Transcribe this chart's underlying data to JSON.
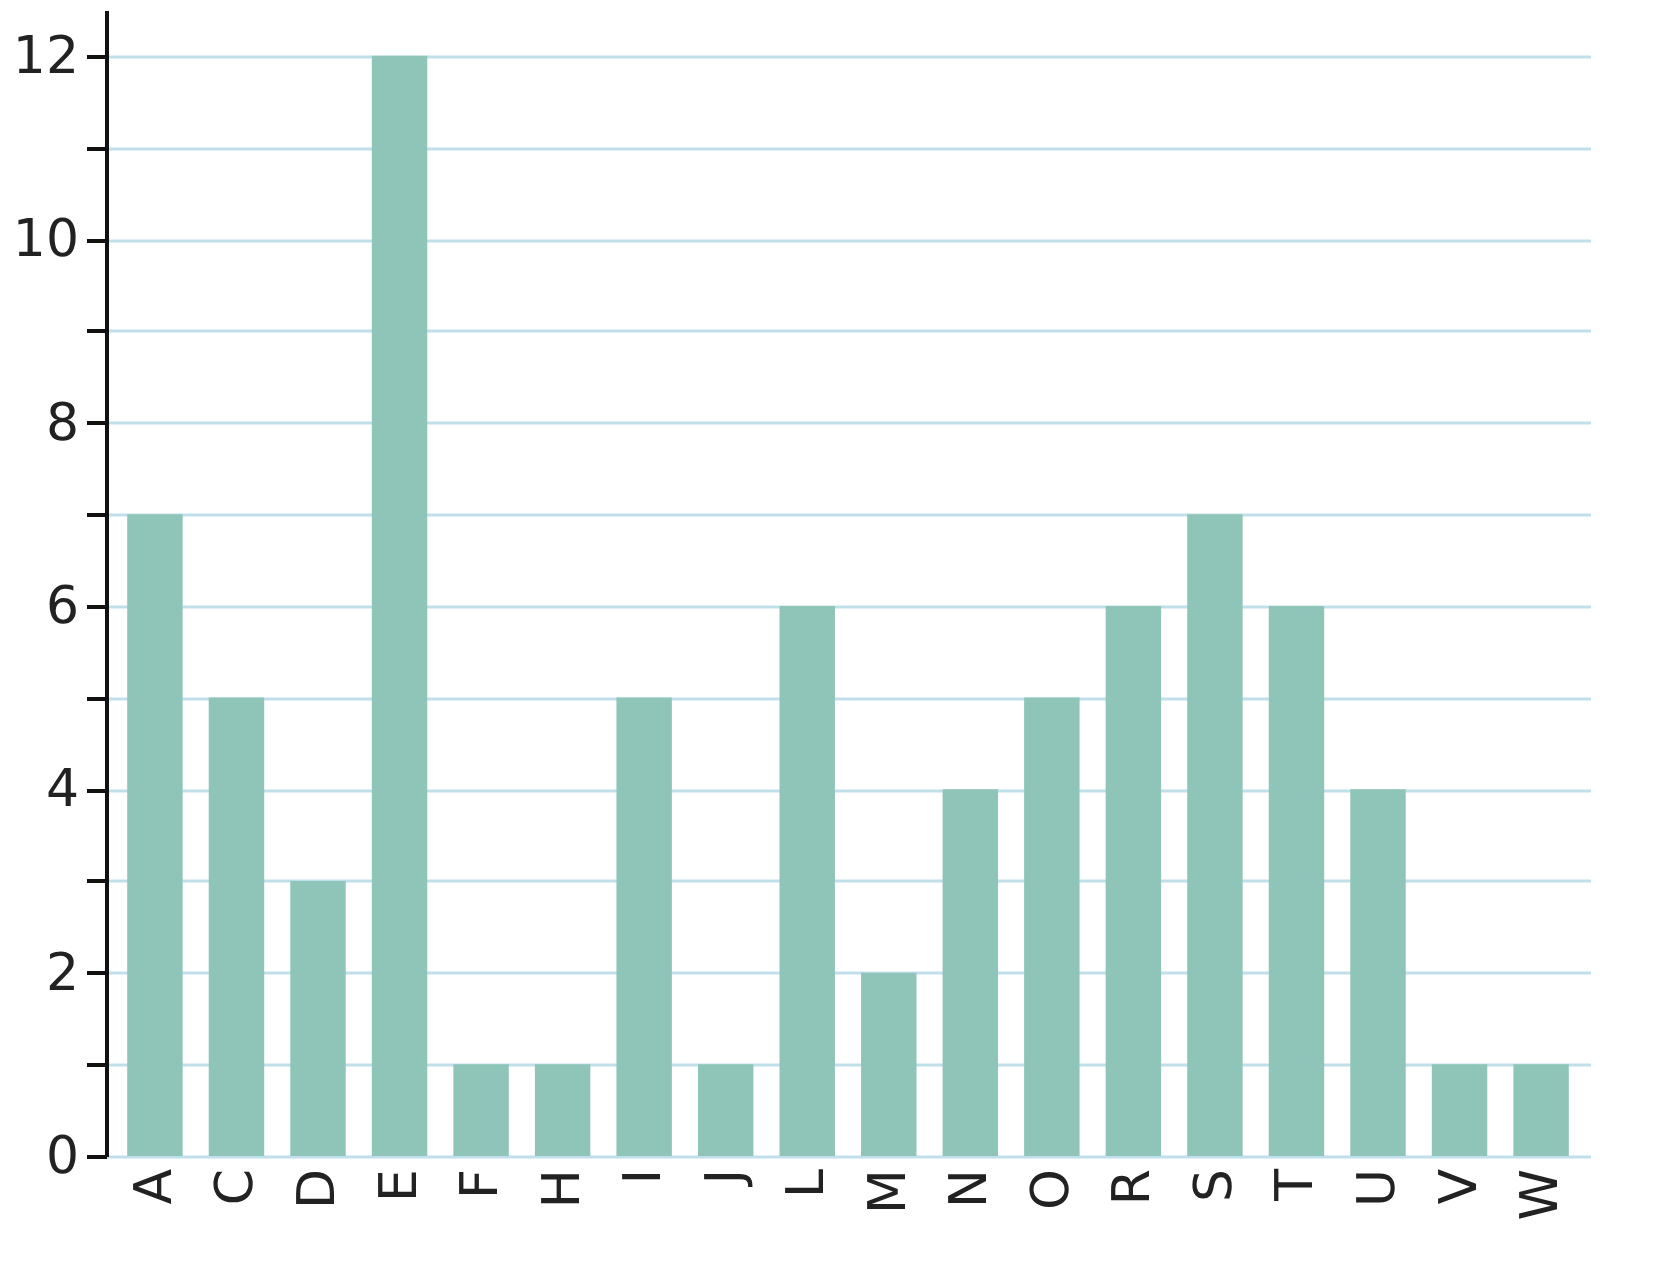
{
  "chart_data": {
    "type": "bar",
    "categories": [
      "A",
      "C",
      "D",
      "E",
      "F",
      "H",
      "I",
      "J",
      "L",
      "M",
      "N",
      "O",
      "R",
      "S",
      "T",
      "U",
      "V",
      "W"
    ],
    "values": [
      7,
      5,
      3,
      12,
      1,
      1,
      5,
      1,
      6,
      2,
      4,
      5,
      6,
      7,
      6,
      4,
      1,
      1
    ],
    "color": "#8fc5b8",
    "ylim": [
      0,
      12.5
    ],
    "yticks": [
      0,
      {
        "value": 1,
        "label": null
      },
      2,
      {
        "value": 3,
        "label": null
      },
      4,
      {
        "value": 5,
        "label": null
      },
      6,
      {
        "value": 7,
        "label": null
      },
      8,
      {
        "value": 9,
        "label": null
      },
      10,
      {
        "value": 11,
        "label": null
      },
      12
    ],
    "grid": "y"
  }
}
